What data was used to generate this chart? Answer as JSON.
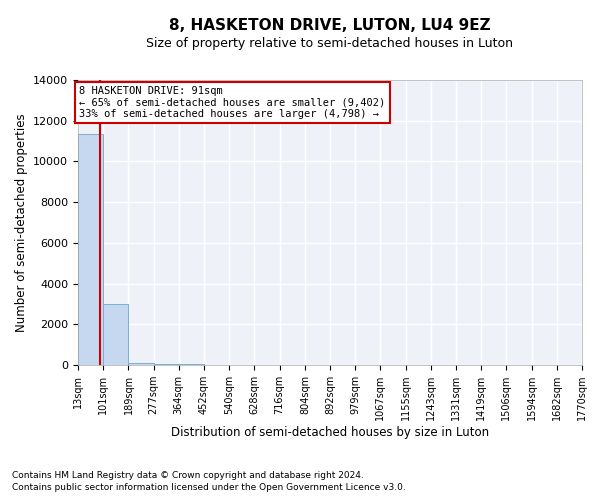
{
  "title": "8, HASKETON DRIVE, LUTON, LU4 9EZ",
  "subtitle": "Size of property relative to semi-detached houses in Luton",
  "xlabel": "Distribution of semi-detached houses by size in Luton",
  "ylabel": "Number of semi-detached properties",
  "bar_edges": [
    13,
    101,
    189,
    277,
    364,
    452,
    540,
    628,
    716,
    804,
    892,
    979,
    1067,
    1155,
    1243,
    1331,
    1419,
    1506,
    1594,
    1682,
    1770
  ],
  "bar_heights": [
    11350,
    3000,
    120,
    50,
    30,
    20,
    15,
    10,
    8,
    6,
    5,
    4,
    3,
    3,
    2,
    2,
    2,
    2,
    1,
    1
  ],
  "bar_color": "#c5d8ef",
  "bar_edge_color": "#7aafd4",
  "ylim": [
    0,
    14000
  ],
  "property_size": 91,
  "annotation_line1": "8 HASKETON DRIVE: 91sqm",
  "annotation_line2": "← 65% of semi-detached houses are smaller (9,402)",
  "annotation_line3": "33% of semi-detached houses are larger (4,798) →",
  "annotation_box_color": "#ffffff",
  "annotation_border_color": "#cc0000",
  "vline_color": "#cc0000",
  "footer1": "Contains HM Land Registry data © Crown copyright and database right 2024.",
  "footer2": "Contains public sector information licensed under the Open Government Licence v3.0.",
  "bg_color": "#eef2f8",
  "grid_color": "#ffffff",
  "tick_labels": [
    "13sqm",
    "101sqm",
    "189sqm",
    "277sqm",
    "364sqm",
    "452sqm",
    "540sqm",
    "628sqm",
    "716sqm",
    "804sqm",
    "892sqm",
    "979sqm",
    "1067sqm",
    "1155sqm",
    "1243sqm",
    "1331sqm",
    "1419sqm",
    "1506sqm",
    "1594sqm",
    "1682sqm",
    "1770sqm"
  ],
  "yticks": [
    0,
    2000,
    4000,
    6000,
    8000,
    10000,
    12000,
    14000
  ]
}
